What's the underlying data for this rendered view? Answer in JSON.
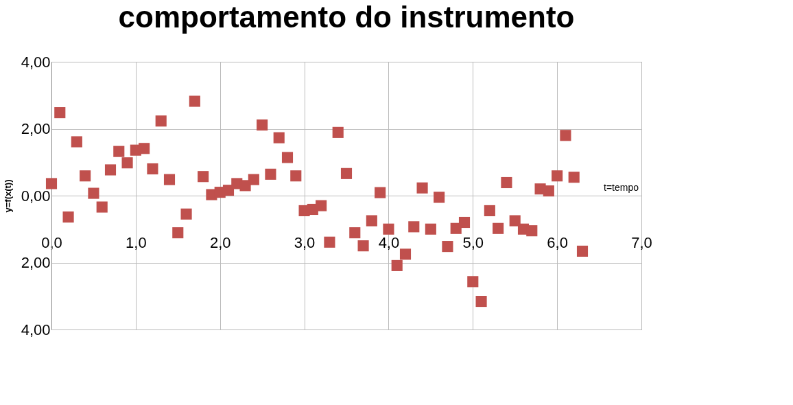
{
  "chart_data": {
    "type": "scatter",
    "title": "comportamento do instrumento",
    "xlabel": "t=tempo",
    "ylabel": "y=f(x(t))",
    "x": [
      0.0,
      0.1,
      0.2,
      0.3,
      0.4,
      0.5,
      0.6,
      0.7,
      0.8,
      0.9,
      1.0,
      1.1,
      1.2,
      1.3,
      1.4,
      1.5,
      1.6,
      1.7,
      1.8,
      1.9,
      2.0,
      2.1,
      2.2,
      2.3,
      2.4,
      2.5,
      2.6,
      2.7,
      2.8,
      2.9,
      3.0,
      3.1,
      3.2,
      3.3,
      3.4,
      3.5,
      3.6,
      3.7,
      3.8,
      3.9,
      4.0,
      4.1,
      4.2,
      4.3,
      4.4,
      4.5,
      4.6,
      4.7,
      4.8,
      4.9,
      5.0,
      5.1,
      5.2,
      5.3,
      5.4,
      5.5,
      5.6,
      5.7,
      5.8,
      5.9,
      6.0,
      6.1,
      6.2,
      6.3
    ],
    "series": [
      {
        "color": "#c0504d",
        "values": [
          0.36,
          2.48,
          -0.64,
          1.61,
          0.59,
          0.07,
          -0.34,
          0.77,
          1.32,
          0.98,
          1.36,
          1.41,
          0.8,
          2.23,
          0.48,
          -1.11,
          -0.55,
          2.82,
          0.57,
          0.03,
          0.1,
          0.16,
          0.36,
          0.3,
          0.48,
          2.11,
          0.64,
          1.73,
          1.14,
          0.59,
          -0.45,
          -0.41,
          -0.3,
          -1.39,
          1.89,
          0.66,
          -1.11,
          -1.5,
          -0.75,
          0.09,
          -1.0,
          -2.09,
          -1.75,
          -0.93,
          0.23,
          -1.0,
          -0.05,
          -1.52,
          -0.98,
          -0.8,
          -2.57,
          -3.16,
          -0.45,
          -0.98,
          0.39,
          -0.75,
          -1.0,
          -1.05,
          0.2,
          0.14,
          0.59,
          1.8,
          0.55,
          -1.66
        ]
      }
    ],
    "xlim": [
      0,
      7
    ],
    "ylim": [
      -4,
      4
    ],
    "xticks": [
      {
        "value": 0,
        "label": "0,0"
      },
      {
        "value": 1,
        "label": "1,0"
      },
      {
        "value": 2,
        "label": "2,0"
      },
      {
        "value": 3,
        "label": "3,0"
      },
      {
        "value": 4,
        "label": "4,0"
      },
      {
        "value": 5,
        "label": "5,0"
      },
      {
        "value": 6,
        "label": "6,0"
      },
      {
        "value": 7,
        "label": "7,0"
      }
    ],
    "yticks": [
      {
        "value": -4,
        "label": "4,00"
      },
      {
        "value": -2,
        "label": "2,00"
      },
      {
        "value": 0,
        "label": "0,00"
      },
      {
        "value": 2,
        "label": "2,00"
      },
      {
        "value": 4,
        "label": "4,00"
      }
    ],
    "grid": true,
    "marker": "square",
    "legend": false
  }
}
